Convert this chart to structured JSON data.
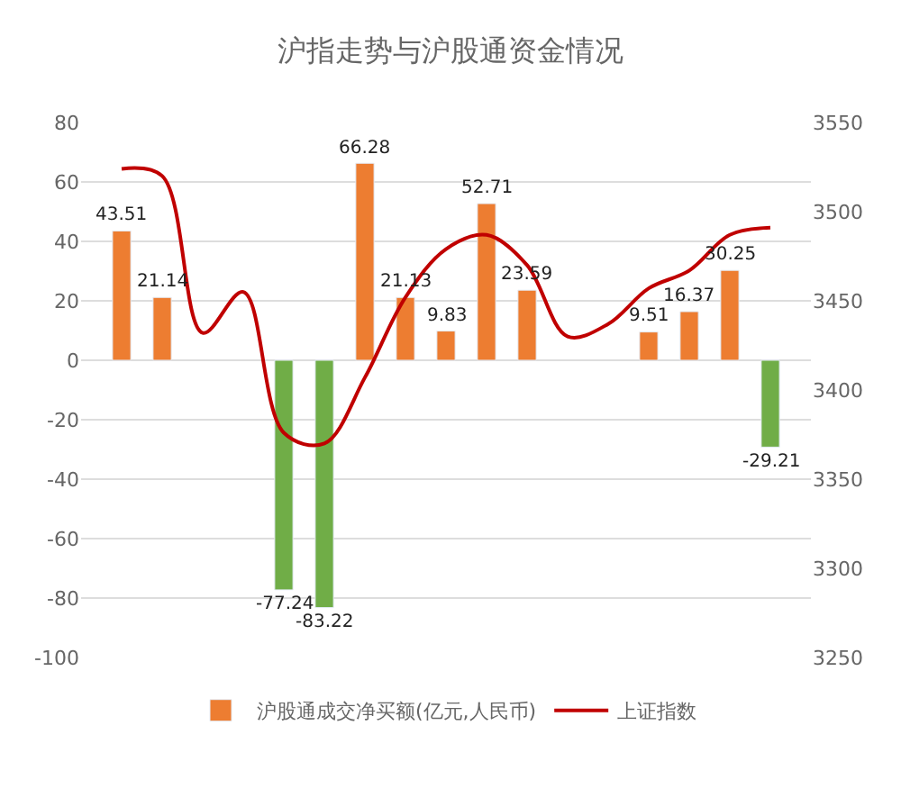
{
  "chart_data": {
    "type": "bar",
    "title": "沪指走势与沪股通资金情况",
    "categories": [
      null,
      null,
      null,
      null,
      null,
      null,
      null,
      null,
      null,
      null,
      null,
      null,
      null,
      null,
      null,
      null,
      null
    ],
    "series": [
      {
        "name": "沪股通成交净买额(亿元,人民币)",
        "type": "bar",
        "color": "#ed7d31",
        "colors": [
          "#ed7d31",
          "#ed7d31",
          null,
          null,
          "#70ad47",
          "#70ad47",
          "#ed7d31",
          "#ed7d31",
          "#ed7d31",
          "#ed7d31",
          "#ed7d31",
          null,
          null,
          "#ed7d31",
          "#ed7d31",
          "#ed7d31",
          "#70ad47"
        ],
        "values": [
          43.51,
          21.14,
          null,
          null,
          -77.24,
          -83.22,
          66.28,
          21.13,
          9.83,
          52.71,
          23.59,
          null,
          null,
          9.51,
          16.37,
          30.25,
          -29.21
        ],
        "value_labels": [
          "43.51",
          "21.14",
          null,
          null,
          "-77.24",
          "-83.22",
          "66.28",
          "21.13",
          "9.83",
          "52.71",
          "23.59",
          null,
          null,
          "9.51",
          "16.37",
          "30.25",
          "-29.21"
        ]
      },
      {
        "name": "上证指数",
        "type": "line",
        "axis": "y2",
        "color": "#c00000",
        "values": [
          3524,
          3520,
          3432,
          3455,
          3376,
          3370,
          3407,
          3452,
          3479,
          3487,
          3470,
          3430,
          3437,
          3457,
          3467,
          3487,
          3491
        ]
      }
    ],
    "ylim": [
      -100,
      80
    ],
    "yticks": [
      -100,
      -80,
      -60,
      -40,
      -20,
      0,
      20,
      40,
      60,
      80
    ],
    "y2lim": [
      3250,
      3550
    ],
    "y2ticks": [
      3250,
      3300,
      3350,
      3400,
      3450,
      3500,
      3550
    ],
    "grid": "y",
    "legend": "bottom",
    "marker": "none"
  }
}
